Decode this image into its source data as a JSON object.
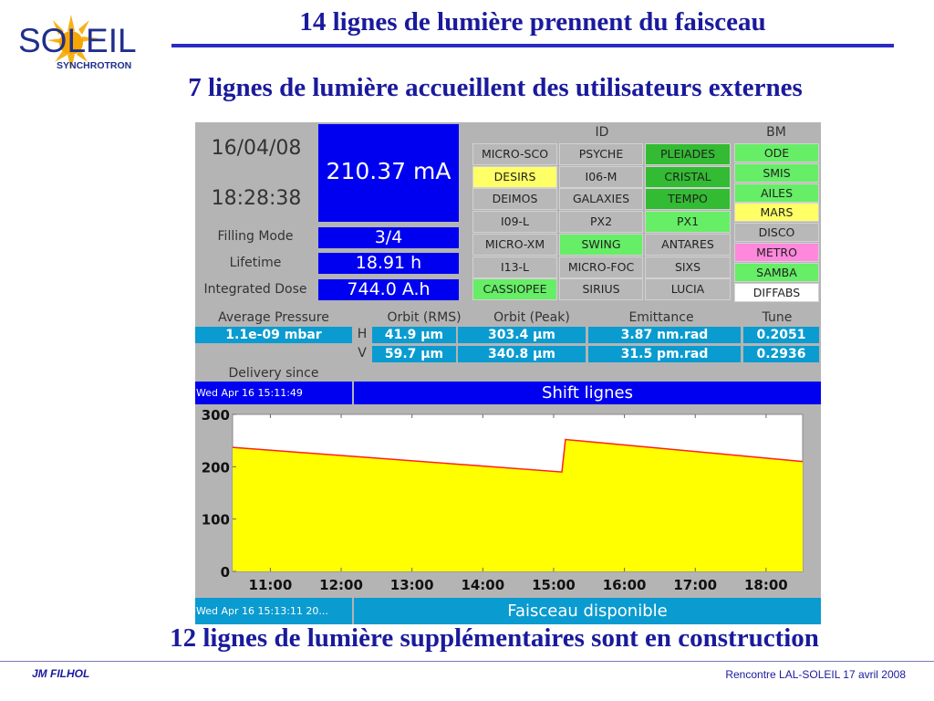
{
  "slide": {
    "logo": {
      "name": "SOLEIL",
      "sub": "SYNCHROTRON"
    },
    "title": "14 lignes de lumière prennent du faisceau",
    "subtitle": "7 lignes de lumière accueillent des utilisateurs externes",
    "bottom_title": "12 lignes de lumière supplémentaires sont en construction",
    "footer_left": "JM FILHOL",
    "footer_right": "Rencontre LAL-SOLEIL 17 avril 2008",
    "title_color": "#1a1a9c"
  },
  "status": {
    "date": "16/04/08",
    "time": "18:28:38",
    "current": "210.37 mA",
    "filling_mode_label": "Filling Mode",
    "filling_mode": "3/4",
    "lifetime_label": "Lifetime",
    "lifetime": "18.91 h",
    "dose_label": "Integrated Dose",
    "dose": "744.0 A.h"
  },
  "beamlines": {
    "id_header": "ID",
    "bm_header": "BM",
    "colors": {
      "off": "#b8b8b8",
      "yellow": "#ffff66",
      "green": "#33bb33",
      "lightgreen": "#66ee66",
      "pink": "#ff88dd",
      "white": "#ffffff"
    },
    "id": [
      [
        {
          "name": "MICRO-SCO",
          "state": "off"
        },
        {
          "name": "PSYCHE",
          "state": "off"
        },
        {
          "name": "PLEIADES",
          "state": "green"
        }
      ],
      [
        {
          "name": "DESIRS",
          "state": "yellow"
        },
        {
          "name": "I06-M",
          "state": "off"
        },
        {
          "name": "CRISTAL",
          "state": "green"
        }
      ],
      [
        {
          "name": "DEIMOS",
          "state": "off"
        },
        {
          "name": "GALAXIES",
          "state": "off"
        },
        {
          "name": "TEMPO",
          "state": "green"
        }
      ],
      [
        {
          "name": "I09-L",
          "state": "off"
        },
        {
          "name": "PX2",
          "state": "off"
        },
        {
          "name": "PX1",
          "state": "lightgreen"
        }
      ],
      [
        {
          "name": "MICRO-XM",
          "state": "off"
        },
        {
          "name": "SWING",
          "state": "lightgreen"
        },
        {
          "name": "ANTARES",
          "state": "off"
        }
      ],
      [
        {
          "name": "I13-L",
          "state": "off"
        },
        {
          "name": "MICRO-FOC",
          "state": "off"
        },
        {
          "name": "SIXS",
          "state": "off"
        }
      ],
      [
        {
          "name": "CASSIOPEE",
          "state": "lightgreen"
        },
        {
          "name": "SIRIUS",
          "state": "off"
        },
        {
          "name": "LUCIA",
          "state": "off"
        }
      ]
    ],
    "bm": [
      {
        "name": "ODE",
        "state": "lightgreen"
      },
      {
        "name": "SMIS",
        "state": "lightgreen"
      },
      {
        "name": "AILES",
        "state": "lightgreen"
      },
      {
        "name": "MARS",
        "state": "yellow"
      },
      {
        "name": "DISCO",
        "state": "off"
      },
      {
        "name": "METRO",
        "state": "pink"
      },
      {
        "name": "SAMBA",
        "state": "lightgreen"
      },
      {
        "name": "DIFFABS",
        "state": "white"
      }
    ]
  },
  "params": {
    "headers": {
      "pressure": "Average Pressure",
      "orbit_rms": "Orbit (RMS)",
      "orbit_peak": "Orbit (Peak)",
      "emittance": "Emittance",
      "tune": "Tune"
    },
    "pressure": "1.1e-09 mbar",
    "h_label": "H",
    "v_label": "V",
    "h": {
      "orbit_rms": "41.9 µm",
      "orbit_peak": "303.4 µm",
      "emittance": "3.87 nm.rad",
      "tune": "0.2051"
    },
    "v": {
      "orbit_rms": "59.7 µm",
      "orbit_peak": "340.8 µm",
      "emittance": "31.5 pm.rad",
      "tune": "0.2936"
    }
  },
  "delivery": {
    "label": "Delivery since",
    "since": "Wed Apr 16 15:11:49",
    "mode": "Shift lignes"
  },
  "footer_bar": {
    "timestamp": "Wed Apr 16 15:13:11 20...",
    "message": "Faisceau disponible"
  },
  "chart_data": {
    "type": "area",
    "xlim": [
      "10:28",
      "18:31"
    ],
    "ylim": [
      0,
      300
    ],
    "yticks": [
      "0",
      "100",
      "200",
      "300"
    ],
    "xticks": [
      "11:00",
      "12:00",
      "13:00",
      "14:00",
      "15:00",
      "16:00",
      "17:00",
      "18:00"
    ],
    "series": [
      {
        "points": [
          [
            "10:28",
            237
          ],
          [
            "15:07",
            190
          ],
          [
            "15:10",
            252
          ],
          [
            "18:31",
            210
          ]
        ]
      }
    ],
    "fill_color": "#ffff00",
    "line_color": "#ff2020",
    "grid": false
  }
}
